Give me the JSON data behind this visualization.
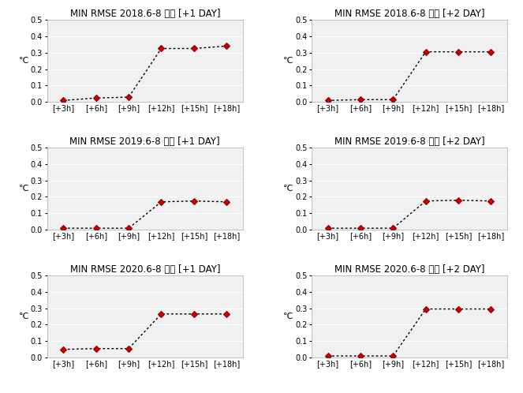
{
  "charts": [
    {
      "title": "MIN RMSE 2018.6-8 평균 [+1 DAY]",
      "values": [
        0.01,
        0.025,
        0.03,
        0.325,
        0.325,
        0.34
      ]
    },
    {
      "title": "MIN RMSE 2018.6-8 평균 [+2 DAY]",
      "values": [
        0.01,
        0.015,
        0.015,
        0.305,
        0.305,
        0.305
      ]
    },
    {
      "title": "MIN RMSE 2019.6-8 평균 [+1 DAY]",
      "values": [
        0.01,
        0.01,
        0.01,
        0.17,
        0.175,
        0.17
      ]
    },
    {
      "title": "MIN RMSE 2019.6-8 평균 [+2 DAY]",
      "values": [
        0.01,
        0.01,
        0.01,
        0.175,
        0.18,
        0.175
      ]
    },
    {
      "title": "MIN RMSE 2020.6-8 평균 [+1 DAY]",
      "values": [
        0.05,
        0.055,
        0.055,
        0.265,
        0.265,
        0.265
      ]
    },
    {
      "title": "MIN RMSE 2020.6-8 평균 [+2 DAY]",
      "values": [
        0.01,
        0.01,
        0.01,
        0.295,
        0.295,
        0.295
      ]
    }
  ],
  "x_labels": [
    "[+3h]",
    "[+6h]",
    "[+9h]",
    "[+12h]",
    "[+15h]",
    "[+18h]"
  ],
  "ylim": [
    0,
    0.5
  ],
  "yticks": [
    0,
    0.1,
    0.2,
    0.3,
    0.4,
    0.5
  ],
  "line_color": "black",
  "marker_color": "#8b0000",
  "marker_face": "#cc0000",
  "ylabel": "℃",
  "bg_color": "#ffffff",
  "plot_bg_color": "#f0f0f0",
  "title_fontsize": 8.5,
  "tick_fontsize": 7,
  "ylabel_fontsize": 8,
  "grid_color": "#ffffff",
  "spine_color": "#aaaaaa"
}
